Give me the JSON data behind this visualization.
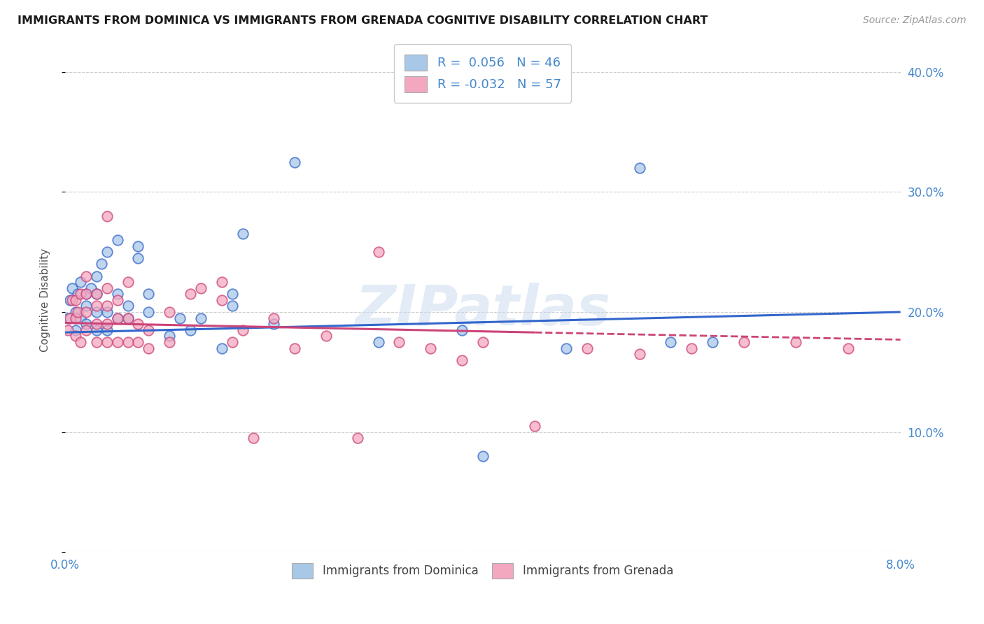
{
  "title": "IMMIGRANTS FROM DOMINICA VS IMMIGRANTS FROM GRENADA COGNITIVE DISABILITY CORRELATION CHART",
  "source": "Source: ZipAtlas.com",
  "ylabel": "Cognitive Disability",
  "xlim": [
    0.0,
    0.08
  ],
  "ylim": [
    0.0,
    0.42
  ],
  "R_dominica": 0.056,
  "N_dominica": 46,
  "R_grenada": -0.032,
  "N_grenada": 57,
  "dominica_color": "#a8c8e8",
  "grenada_color": "#f4a8c0",
  "trend_dominica_color": "#3366cc",
  "trend_grenada_color": "#cc4477",
  "watermark": "ZIPatlas",
  "dominica_x": [
    0.0003,
    0.0005,
    0.0007,
    0.001,
    0.001,
    0.0012,
    0.0015,
    0.0015,
    0.002,
    0.002,
    0.002,
    0.0025,
    0.003,
    0.003,
    0.003,
    0.003,
    0.0035,
    0.004,
    0.004,
    0.004,
    0.005,
    0.005,
    0.005,
    0.006,
    0.006,
    0.007,
    0.007,
    0.008,
    0.008,
    0.01,
    0.011,
    0.012,
    0.013,
    0.015,
    0.016,
    0.016,
    0.017,
    0.02,
    0.022,
    0.03,
    0.038,
    0.04,
    0.048,
    0.055,
    0.058,
    0.062
  ],
  "dominica_y": [
    0.195,
    0.21,
    0.22,
    0.185,
    0.2,
    0.215,
    0.195,
    0.225,
    0.19,
    0.205,
    0.215,
    0.22,
    0.185,
    0.2,
    0.215,
    0.23,
    0.24,
    0.185,
    0.2,
    0.25,
    0.195,
    0.215,
    0.26,
    0.195,
    0.205,
    0.245,
    0.255,
    0.2,
    0.215,
    0.18,
    0.195,
    0.185,
    0.195,
    0.17,
    0.205,
    0.215,
    0.265,
    0.19,
    0.325,
    0.175,
    0.185,
    0.08,
    0.17,
    0.32,
    0.175,
    0.175
  ],
  "grenada_x": [
    0.0003,
    0.0005,
    0.0007,
    0.001,
    0.001,
    0.001,
    0.0012,
    0.0015,
    0.0015,
    0.002,
    0.002,
    0.002,
    0.002,
    0.003,
    0.003,
    0.003,
    0.003,
    0.004,
    0.004,
    0.004,
    0.004,
    0.004,
    0.005,
    0.005,
    0.005,
    0.006,
    0.006,
    0.006,
    0.007,
    0.007,
    0.008,
    0.008,
    0.01,
    0.01,
    0.012,
    0.013,
    0.015,
    0.015,
    0.016,
    0.017,
    0.018,
    0.02,
    0.022,
    0.025,
    0.028,
    0.03,
    0.032,
    0.035,
    0.038,
    0.04,
    0.045,
    0.05,
    0.055,
    0.06,
    0.065,
    0.07,
    0.075
  ],
  "grenada_y": [
    0.185,
    0.195,
    0.21,
    0.18,
    0.195,
    0.21,
    0.2,
    0.175,
    0.215,
    0.185,
    0.2,
    0.215,
    0.23,
    0.175,
    0.19,
    0.205,
    0.215,
    0.175,
    0.19,
    0.205,
    0.22,
    0.28,
    0.175,
    0.195,
    0.21,
    0.175,
    0.195,
    0.225,
    0.175,
    0.19,
    0.17,
    0.185,
    0.175,
    0.2,
    0.215,
    0.22,
    0.21,
    0.225,
    0.175,
    0.185,
    0.095,
    0.195,
    0.17,
    0.18,
    0.095,
    0.25,
    0.175,
    0.17,
    0.16,
    0.175,
    0.105,
    0.17,
    0.165,
    0.17,
    0.175,
    0.175,
    0.17
  ],
  "trend_dom_x0": 0.0,
  "trend_dom_x1": 0.08,
  "trend_dom_y0": 0.183,
  "trend_dom_y1": 0.2,
  "trend_gren_x0": 0.0,
  "trend_gren_x1": 0.045,
  "trend_gren_y0": 0.191,
  "trend_gren_y1": 0.183,
  "trend_gren_dash_x0": 0.045,
  "trend_gren_dash_x1": 0.08,
  "trend_gren_dash_y0": 0.183,
  "trend_gren_dash_y1": 0.177
}
